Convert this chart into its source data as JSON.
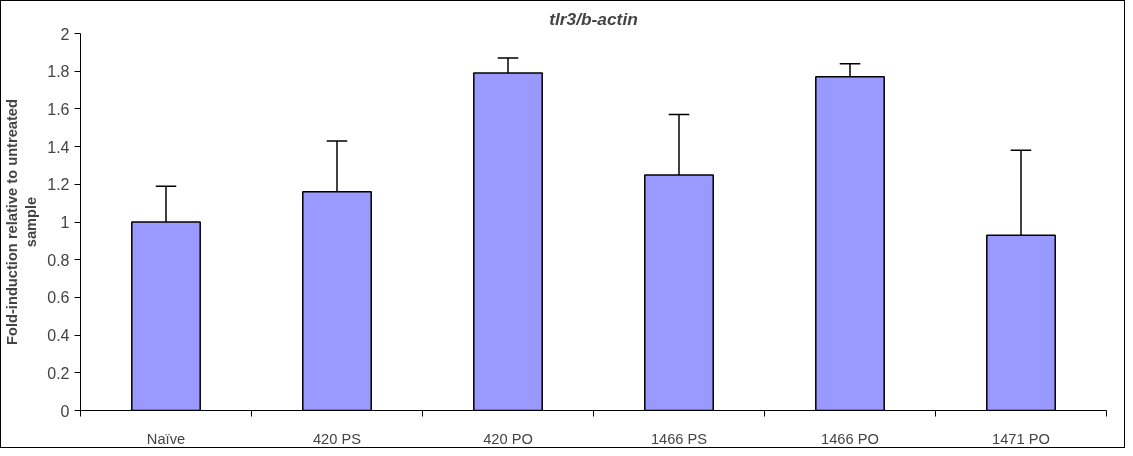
{
  "chart_data": {
    "type": "bar",
    "title": "tlr3/b-actin",
    "ylabel": "Fold-induction relative to untreated sample",
    "categories": [
      "Naïve",
      "420 PS",
      "420 PO",
      "1466 PS",
      "1466 PO",
      "1471 PO"
    ],
    "values": [
      1.0,
      1.16,
      1.79,
      1.25,
      1.77,
      0.93
    ],
    "errors": [
      [
        1.0,
        1.19
      ],
      [
        1.16,
        1.43
      ],
      [
        1.79,
        1.87
      ],
      [
        1.25,
        1.57
      ],
      [
        1.77,
        1.84
      ],
      [
        0.93,
        1.38
      ]
    ],
    "color": "#9999ff",
    "ylim": [
      0,
      2
    ],
    "yticks": [
      0,
      0.2,
      0.4,
      0.6,
      0.8,
      1,
      1.2,
      1.4,
      1.6,
      1.8,
      2
    ],
    "grid": false
  }
}
